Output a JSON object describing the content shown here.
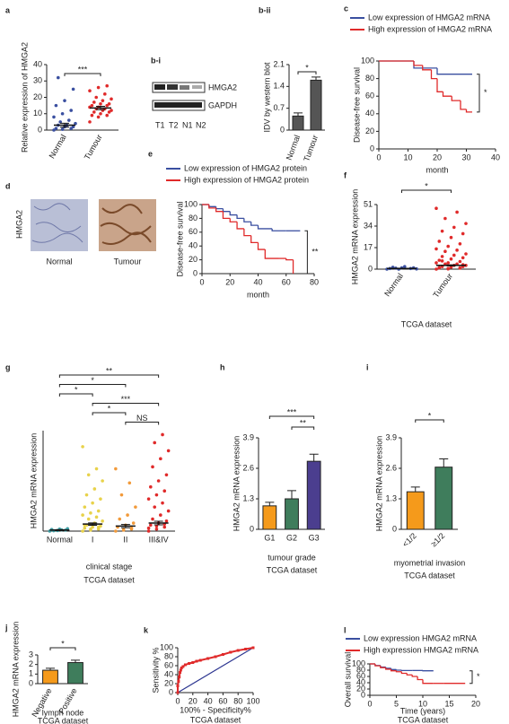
{
  "figures": {
    "blot": {
      "label": "b-i",
      "bands": [
        "HMGA2",
        "GAPDH"
      ],
      "lanes": [
        "T1",
        "T2",
        "N1",
        "N2"
      ]
    },
    "ihc": {
      "label": "d",
      "marker": "HMGA2",
      "images": [
        "Normal",
        "Tumour"
      ]
    }
  },
  "chart_data": [
    {
      "type": "strip",
      "label": "a",
      "ylabel": "Relative expression of HMGA2",
      "categories": [
        "Normal",
        "Tumour"
      ],
      "colors": [
        "#3a4fa0",
        "#e02a2a"
      ],
      "points": [
        [
          0,
          0.5,
          1,
          1,
          2,
          2,
          3,
          3,
          4,
          5,
          6,
          8,
          10,
          12,
          15,
          18,
          25,
          32
        ],
        [
          5,
          8,
          9,
          9,
          10,
          11,
          11,
          12,
          12,
          13,
          13,
          14,
          14,
          15,
          15,
          16,
          16,
          17,
          18,
          19,
          20,
          22,
          24,
          26,
          27
        ]
      ],
      "means": [
        3,
        13.5
      ],
      "errors": [
        1.2,
        1
      ],
      "ylim": [
        0,
        40
      ],
      "yticks": [
        0,
        10,
        20,
        30,
        40
      ],
      "significance": [
        {
          "pair": [
            "Normal",
            "Tumour"
          ],
          "label": "***"
        }
      ]
    },
    {
      "type": "bar",
      "label": "b-ii",
      "ylabel": "IDV by western blot",
      "categories": [
        "Normal",
        "Tumour"
      ],
      "colors": [
        "#555555",
        "#555555"
      ],
      "values": [
        0.45,
        1.6
      ],
      "errors": [
        0.1,
        0.1
      ],
      "ylim": [
        0,
        2.1
      ],
      "yticks": [
        0,
        0.7,
        1.4,
        2.1
      ],
      "significance": [
        {
          "pair": [
            "Normal",
            "Tumour"
          ],
          "label": "*"
        }
      ]
    },
    {
      "type": "line",
      "step": true,
      "label": "c",
      "ylabel": "Disease-free survival",
      "xlabel": "month",
      "xlim": [
        0,
        40
      ],
      "xticks": [
        0,
        10,
        20,
        30,
        40
      ],
      "ylim": [
        0,
        100
      ],
      "yticks": [
        0,
        20,
        40,
        60,
        80,
        100
      ],
      "annotation": "*",
      "series": [
        {
          "name": "Low expression of HMGA2 mRNA",
          "color": "#3a4fa0",
          "x": [
            0,
            12,
            20,
            32
          ],
          "values": [
            100,
            92,
            85,
            85
          ]
        },
        {
          "name": "High expression of HMGA2 mRNA",
          "color": "#e02a2a",
          "x": [
            0,
            12,
            15,
            18,
            20,
            22,
            25,
            28,
            30,
            32
          ],
          "values": [
            100,
            95,
            90,
            80,
            65,
            60,
            55,
            45,
            42,
            42
          ]
        }
      ]
    },
    {
      "type": "line",
      "step": true,
      "label": "e",
      "ylabel": "Disease-free survival",
      "xlabel": "month",
      "xlim": [
        0,
        80
      ],
      "xticks": [
        0,
        20,
        40,
        60,
        80
      ],
      "ylim": [
        0,
        100
      ],
      "yticks": [
        0,
        20,
        40,
        60,
        80,
        100
      ],
      "annotation": "**",
      "series": [
        {
          "name": "Low expression of HMGA2 protein",
          "color": "#3a4fa0",
          "x": [
            0,
            5,
            10,
            15,
            20,
            25,
            30,
            35,
            40,
            50,
            60,
            70
          ],
          "values": [
            100,
            97,
            94,
            90,
            85,
            80,
            75,
            70,
            65,
            62,
            62,
            62
          ]
        },
        {
          "name": "High expression of HMGA2 protein",
          "color": "#e02a2a",
          "x": [
            0,
            5,
            10,
            15,
            20,
            25,
            30,
            35,
            40,
            45,
            55,
            60,
            65
          ],
          "values": [
            100,
            95,
            90,
            80,
            75,
            65,
            55,
            45,
            35,
            22,
            22,
            20,
            0
          ]
        }
      ]
    },
    {
      "type": "strip",
      "label": "f",
      "ylabel": "HMGA2 mRNA expression",
      "caption": "TCGA dataset",
      "categories": [
        "Normal",
        "Tumour"
      ],
      "colors": [
        "#3a4fa0",
        "#e02a2a"
      ],
      "points": [
        [
          0,
          0,
          0.5,
          0.5,
          1,
          1,
          1.5,
          2,
          0.2,
          0.8
        ],
        [
          0,
          0.5,
          1,
          1,
          1.5,
          2,
          2,
          3,
          3,
          4,
          4,
          5,
          5,
          6,
          7,
          8,
          9,
          10,
          11,
          12,
          14,
          15,
          16,
          18,
          20,
          22,
          25,
          28,
          30,
          33,
          36,
          40,
          45,
          48,
          0.2,
          0.8,
          1.2,
          2.5,
          3.5,
          6.5
        ]
      ],
      "means": [
        0.5,
        3
      ],
      "errors": [
        0.2,
        0.4
      ],
      "ylim": [
        0,
        51
      ],
      "yticks": [
        0,
        17,
        34,
        51
      ],
      "significance": [
        {
          "pair": [
            "Normal",
            "Tumour"
          ],
          "label": "*"
        }
      ]
    },
    {
      "type": "strip",
      "label": "g",
      "ylabel": "HMGA2 mRNA expression",
      "xlabel": "clinical stage",
      "caption": "TCGA dataset",
      "categories": [
        "Normal",
        "I",
        "II",
        "III&IV"
      ],
      "colors": [
        "#3b9aa0",
        "#e8d24a",
        "#f29a3a",
        "#e02a2a"
      ],
      "points": [
        [
          0,
          0.3,
          0.5,
          0.8,
          1,
          1.2,
          0.2,
          0.6
        ],
        [
          0,
          0.5,
          1,
          1.5,
          2,
          2.5,
          3,
          4,
          5,
          6,
          7,
          8,
          9,
          10,
          12,
          14,
          16,
          18,
          21,
          25,
          28,
          31,
          42,
          1,
          2,
          3
        ],
        [
          0,
          0.5,
          1,
          2,
          3,
          4,
          6,
          8,
          12,
          18,
          24,
          31,
          0.8,
          1.5
        ],
        [
          0,
          1,
          2,
          3,
          4,
          5,
          6,
          8,
          10,
          12,
          14,
          16,
          18,
          20,
          22,
          25,
          28,
          32,
          36,
          40,
          44,
          48,
          1.5,
          2.5,
          3.5
        ]
      ],
      "means": [
        0.5,
        3.5,
        2.5,
        4
      ],
      "errors": [
        0.2,
        0.6,
        0.8,
        0.9
      ],
      "ylim": [
        0,
        50
      ],
      "significance": [
        {
          "pair": [
            "Normal",
            "III&IV"
          ],
          "label": "**"
        },
        {
          "pair": [
            "Normal",
            "II"
          ],
          "label": "*"
        },
        {
          "pair": [
            "Normal",
            "I"
          ],
          "label": "*"
        },
        {
          "pair": [
            "I",
            "III&IV"
          ],
          "label": "***"
        },
        {
          "pair": [
            "I",
            "II"
          ],
          "label": "*"
        },
        {
          "pair": [
            "II",
            "III&IV"
          ],
          "label": "NS"
        }
      ]
    },
    {
      "type": "bar",
      "label": "h",
      "ylabel": "HMGA2 mRNA expression",
      "xlabel": "tumour grade",
      "caption": "TCGA dataset",
      "categories": [
        "G1",
        "G2",
        "G3"
      ],
      "colors": [
        "#f59a1b",
        "#3f7d5c",
        "#4b3e8f"
      ],
      "values": [
        1.0,
        1.3,
        2.9
      ],
      "errors": [
        0.15,
        0.35,
        0.3
      ],
      "ylim": [
        0,
        3.9
      ],
      "yticks": [
        0,
        1.3,
        2.6,
        3.9
      ],
      "significance": [
        {
          "pair": [
            "G1",
            "G3"
          ],
          "label": "***"
        },
        {
          "pair": [
            "G2",
            "G3"
          ],
          "label": "**"
        }
      ]
    },
    {
      "type": "bar",
      "label": "i",
      "ylabel": "HMGA2 mRNA expression",
      "xlabel": "myometrial invasion",
      "caption": "TCGA dataset",
      "categories": [
        "<1/2",
        "≥1/2"
      ],
      "colors": [
        "#f59a1b",
        "#3f7d5c"
      ],
      "values": [
        1.6,
        2.65
      ],
      "errors": [
        0.2,
        0.35
      ],
      "ylim": [
        0,
        3.9
      ],
      "yticks": [
        0,
        1.3,
        2.6,
        3.9
      ],
      "significance": [
        {
          "pair": [
            "<1/2",
            "≥1/2"
          ],
          "label": "*"
        }
      ]
    },
    {
      "type": "bar",
      "label": "j",
      "ylabel": "HMGA2 mRNA expression",
      "xlabel": "lymph node",
      "caption": "TCGA dataset",
      "categories": [
        "Negative",
        "Positive"
      ],
      "colors": [
        "#f59a1b",
        "#3f7d5c"
      ],
      "values": [
        1.4,
        2.2
      ],
      "errors": [
        0.2,
        0.25
      ],
      "ylim": [
        0,
        3
      ],
      "yticks": [
        0,
        1,
        2,
        3
      ],
      "significance": [
        {
          "pair": [
            "Negative",
            "Positive"
          ],
          "label": "*"
        }
      ]
    },
    {
      "type": "line",
      "step": false,
      "reference_line": true,
      "label": "k",
      "ylabel": "Sensitivity %",
      "xlabel": "100% - Specificity%",
      "caption": "TCGA dataset",
      "xlim": [
        0,
        100
      ],
      "xticks": [
        0,
        20,
        40,
        60,
        80,
        100
      ],
      "ylim": [
        0,
        100
      ],
      "yticks": [
        0,
        20,
        40,
        60,
        80,
        100
      ],
      "series": [
        {
          "color": "#e02a2a",
          "x": [
            0,
            0,
            1,
            2,
            3,
            4,
            5,
            7,
            10,
            15,
            20,
            25,
            30,
            40,
            50,
            60,
            70,
            80,
            90,
            100
          ],
          "values": [
            0,
            15,
            25,
            35,
            45,
            50,
            55,
            58,
            62,
            65,
            67,
            70,
            72,
            76,
            80,
            85,
            90,
            94,
            97,
            100
          ]
        }
      ]
    },
    {
      "type": "line",
      "step": true,
      "label": "l",
      "ylabel": "Overall survival",
      "xlabel": "Time (years)",
      "caption": "TCGA dataset",
      "xlim": [
        0,
        20
      ],
      "xticks": [
        0,
        5,
        10,
        15,
        20
      ],
      "ylim": [
        0,
        100
      ],
      "yticks": [
        0,
        20,
        40,
        60,
        80,
        100
      ],
      "annotation": "*",
      "series": [
        {
          "name": "Low expression HMGA2 mRNA",
          "color": "#3a4fa0",
          "x": [
            0,
            1,
            2,
            3,
            4,
            5,
            6,
            8,
            10,
            12
          ],
          "values": [
            100,
            95,
            90,
            86,
            82,
            80,
            79,
            79,
            78,
            78
          ]
        },
        {
          "name": "High expression HMGA2 mRNA",
          "color": "#e02a2a",
          "x": [
            0,
            1,
            2,
            3,
            4,
            5,
            6,
            7,
            8,
            9,
            10,
            12,
            14,
            18
          ],
          "values": [
            100,
            94,
            88,
            83,
            78,
            75,
            70,
            65,
            60,
            50,
            38,
            38,
            38,
            38
          ]
        }
      ]
    }
  ]
}
